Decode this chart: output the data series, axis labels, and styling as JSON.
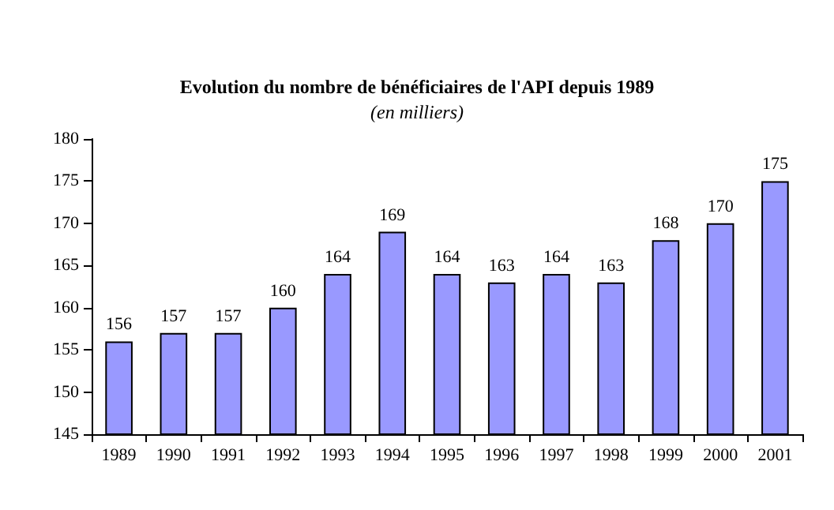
{
  "chart_data": {
    "type": "bar",
    "title": "Evolution du nombre de bénéficiaires de l'API depuis 1989",
    "subtitle": "(en milliers)",
    "categories": [
      "1989",
      "1990",
      "1991",
      "1992",
      "1993",
      "1994",
      "1995",
      "1996",
      "1997",
      "1998",
      "1999",
      "2000",
      "2001"
    ],
    "values": [
      156,
      157,
      157,
      160,
      164,
      169,
      164,
      163,
      164,
      163,
      168,
      170,
      175
    ],
    "color": "#9999ff",
    "ylim": [
      145,
      180
    ],
    "yticks": [
      145,
      150,
      155,
      160,
      165,
      170,
      175,
      180
    ],
    "grid": false,
    "data_labels": true
  }
}
